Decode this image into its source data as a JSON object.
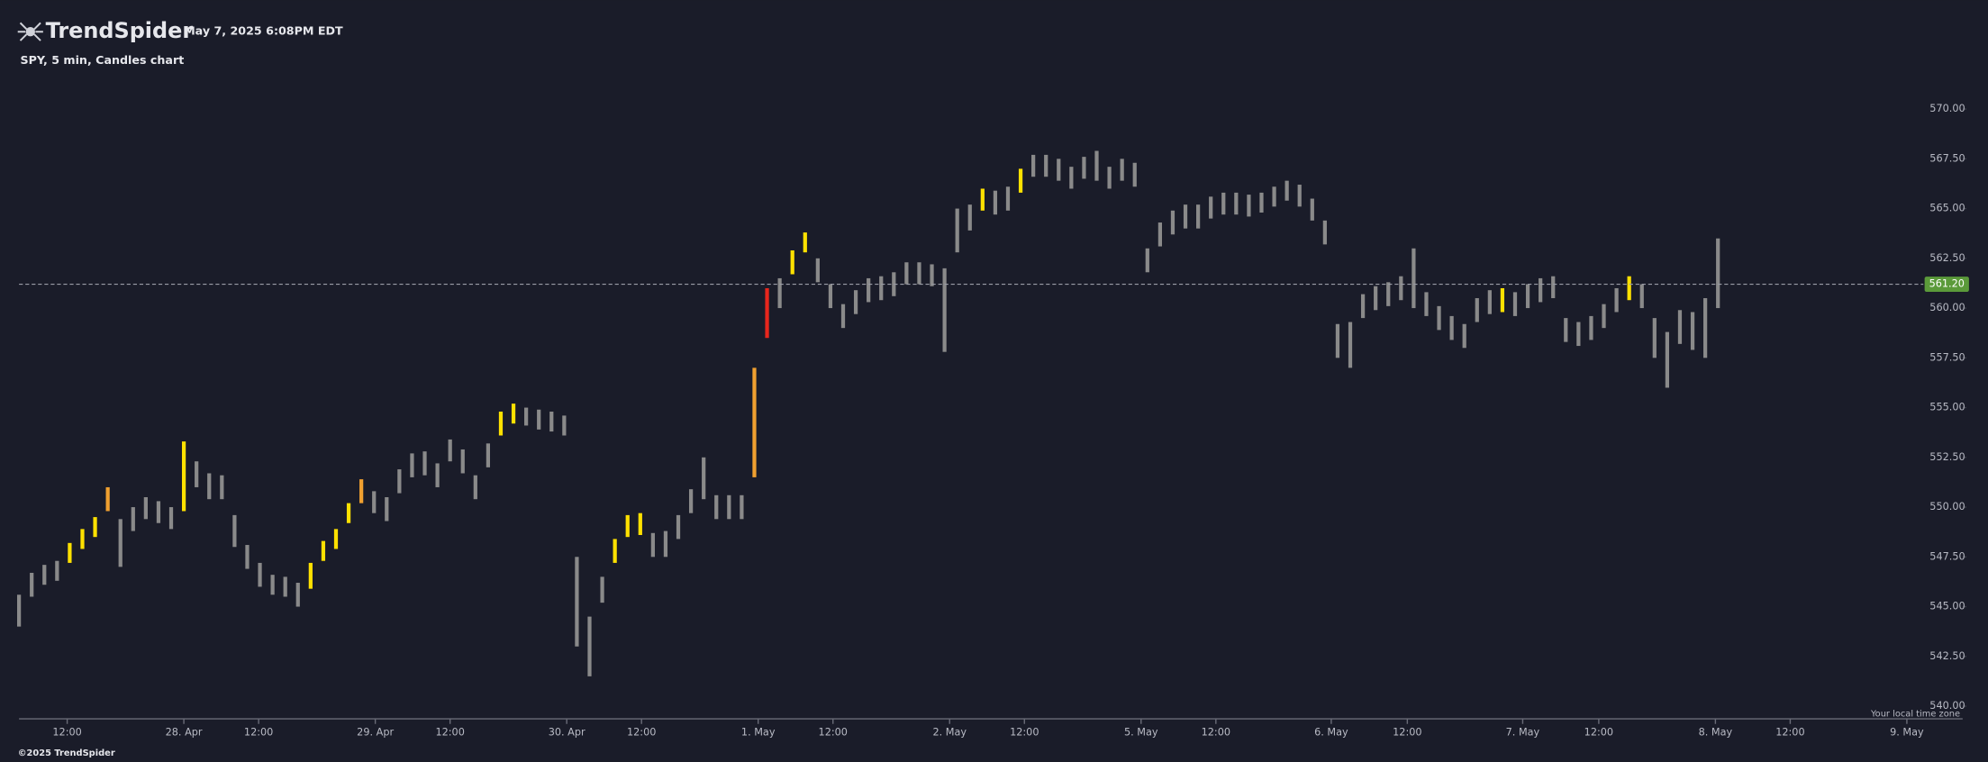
{
  "brand": "TrendSpider",
  "timestamp": "May 7, 2025 6:08PM EDT",
  "footer": "©2025 TrendSpider",
  "timezone_note": "Your local time zone",
  "chart_data": {
    "type": "candlestick",
    "title": "SPY, 5 min, Candles chart",
    "last_price": {
      "value": 561.2,
      "label": "561.20"
    },
    "xlim": [
      0,
      150
    ],
    "ylim": [
      540,
      570
    ],
    "yticks": [
      {
        "value": 540,
        "label": "540.00"
      },
      {
        "value": 542.5,
        "label": "542.50"
      },
      {
        "value": 545,
        "label": "545.00"
      },
      {
        "value": 547.5,
        "label": "547.50"
      },
      {
        "value": 550,
        "label": "550.00"
      },
      {
        "value": 552.5,
        "label": "552.50"
      },
      {
        "value": 555,
        "label": "555.00"
      },
      {
        "value": 557.5,
        "label": "557.50"
      },
      {
        "value": 560,
        "label": "560.00"
      },
      {
        "value": 562.5,
        "label": "562.50"
      },
      {
        "value": 565,
        "label": "565.00"
      },
      {
        "value": 567.5,
        "label": "567.50"
      },
      {
        "value": 570,
        "label": "570.00"
      }
    ],
    "xticks": [
      {
        "value": 3.8,
        "label": "12:00"
      },
      {
        "value": 13,
        "label": "28. Apr"
      },
      {
        "value": 18.9,
        "label": "12:00"
      },
      {
        "value": 28.1,
        "label": "29. Apr"
      },
      {
        "value": 34,
        "label": "12:00"
      },
      {
        "value": 43.2,
        "label": "30. Apr"
      },
      {
        "value": 49.1,
        "label": "12:00"
      },
      {
        "value": 58.3,
        "label": "1. May"
      },
      {
        "value": 64.2,
        "label": "12:00"
      },
      {
        "value": 73.4,
        "label": "2. May"
      },
      {
        "value": 79.3,
        "label": "12:00"
      },
      {
        "value": 88.5,
        "label": "5. May"
      },
      {
        "value": 94.4,
        "label": "12:00"
      },
      {
        "value": 103.5,
        "label": "6. May"
      },
      {
        "value": 109.5,
        "label": "12:00"
      },
      {
        "value": 118.6,
        "label": "7. May"
      },
      {
        "value": 124.6,
        "label": "12:00"
      },
      {
        "value": 133.8,
        "label": "8. May"
      },
      {
        "value": 139.7,
        "label": "12:00"
      },
      {
        "value": 148.9,
        "label": "9. May"
      }
    ],
    "low": [
      544.0,
      545.5,
      546.1,
      546.3,
      547.2,
      547.9,
      548.5,
      549.8,
      547.0,
      548.8,
      549.4,
      549.2,
      548.9,
      549.8,
      551.0,
      550.4,
      550.4,
      548.0,
      546.9,
      546.0,
      545.6,
      545.5,
      545.0,
      545.9,
      547.3,
      547.9,
      549.2,
      550.2,
      549.7,
      549.3,
      550.7,
      551.5,
      551.6,
      551.0,
      552.3,
      551.7,
      550.4,
      552.0,
      553.6,
      554.2,
      554.1,
      553.9,
      553.8,
      553.6,
      543.0,
      541.5,
      545.2,
      547.2,
      548.5,
      548.6,
      547.5,
      547.5,
      548.4,
      549.7,
      550.4,
      549.4,
      549.4,
      549.4,
      551.5,
      558.5,
      560.0,
      561.7,
      562.8,
      561.3,
      560.0,
      559.0,
      559.7,
      560.3,
      560.4,
      560.6,
      561.2,
      561.2,
      561.1,
      557.8,
      562.8,
      563.9,
      564.9,
      564.7,
      564.9,
      565.8,
      566.6,
      566.6,
      566.4,
      566.0,
      566.5,
      566.4,
      566.0,
      566.4,
      566.1,
      561.8,
      563.1,
      563.7,
      564.0,
      564.0,
      564.5,
      564.7,
      564.7,
      564.6,
      564.8,
      565.1,
      565.4,
      565.1,
      564.4,
      563.2,
      557.5,
      557.0,
      559.5,
      559.9,
      560.1,
      560.4,
      560.0,
      559.6,
      558.9,
      558.4,
      558.0,
      559.3,
      559.7,
      559.8,
      559.6,
      560.0,
      560.3,
      560.5,
      558.3,
      558.1,
      558.4,
      559.0,
      559.8,
      560.4,
      560.0,
      557.5,
      556.0,
      558.2,
      557.9,
      557.5,
      560.0
    ],
    "high": [
      545.6,
      546.7,
      547.1,
      547.3,
      548.2,
      548.9,
      549.5,
      551.0,
      549.4,
      550.0,
      550.5,
      550.3,
      550.0,
      553.3,
      552.3,
      551.7,
      551.6,
      549.6,
      548.1,
      547.2,
      546.6,
      546.5,
      546.2,
      547.2,
      548.3,
      548.9,
      550.2,
      551.4,
      550.8,
      550.5,
      551.9,
      552.7,
      552.8,
      552.2,
      553.4,
      552.9,
      551.6,
      553.2,
      554.8,
      555.2,
      555.0,
      554.9,
      554.8,
      554.6,
      547.5,
      544.5,
      546.5,
      548.4,
      549.6,
      549.7,
      548.7,
      548.8,
      549.6,
      550.9,
      552.5,
      550.6,
      550.6,
      550.6,
      557.0,
      561.0,
      561.5,
      562.9,
      563.8,
      562.5,
      561.2,
      560.2,
      560.9,
      561.5,
      561.6,
      561.8,
      562.3,
      562.3,
      562.2,
      562.0,
      565.0,
      565.2,
      566.0,
      565.9,
      566.1,
      567.0,
      567.7,
      567.7,
      567.5,
      567.1,
      567.6,
      567.9,
      567.1,
      567.5,
      567.3,
      563.0,
      564.3,
      564.9,
      565.2,
      565.2,
      565.6,
      565.8,
      565.8,
      565.7,
      565.8,
      566.1,
      566.4,
      566.2,
      565.5,
      564.4,
      559.2,
      559.3,
      560.7,
      561.1,
      561.3,
      561.6,
      563.0,
      560.8,
      560.1,
      559.6,
      559.2,
      560.5,
      560.9,
      561.0,
      560.8,
      561.2,
      561.5,
      561.6,
      559.5,
      559.3,
      559.6,
      560.2,
      561.0,
      561.6,
      561.2,
      559.5,
      558.8,
      559.9,
      559.8,
      560.5,
      563.5
    ],
    "colors": [
      "#8a8a8a",
      "#8a8a8a",
      "#8a8a8a",
      "#8a8a8a",
      "#ffe100",
      "#ffe100",
      "#ffe100",
      "#f0a030",
      "#8a8a8a",
      "#8a8a8a",
      "#8a8a8a",
      "#8a8a8a",
      "#8a8a8a",
      "#ffe100",
      "#8a8a8a",
      "#8a8a8a",
      "#8a8a8a",
      "#8a8a8a",
      "#8a8a8a",
      "#8a8a8a",
      "#8a8a8a",
      "#8a8a8a",
      "#8a8a8a",
      "#ffe100",
      "#ffe100",
      "#ffe100",
      "#ffe100",
      "#f0a030",
      "#8a8a8a",
      "#8a8a8a",
      "#8a8a8a",
      "#8a8a8a",
      "#8a8a8a",
      "#8a8a8a",
      "#8a8a8a",
      "#8a8a8a",
      "#8a8a8a",
      "#8a8a8a",
      "#ffe100",
      "#ffe100",
      "#8a8a8a",
      "#8a8a8a",
      "#8a8a8a",
      "#8a8a8a",
      "#8a8a8a",
      "#8a8a8a",
      "#8a8a8a",
      "#ffe100",
      "#ffe100",
      "#ffe100",
      "#8a8a8a",
      "#8a8a8a",
      "#8a8a8a",
      "#8a8a8a",
      "#8a8a8a",
      "#8a8a8a",
      "#8a8a8a",
      "#8a8a8a",
      "#f0a030",
      "#e8261c",
      "#8a8a8a",
      "#ffe100",
      "#ffe100",
      "#8a8a8a",
      "#8a8a8a",
      "#8a8a8a",
      "#8a8a8a",
      "#8a8a8a",
      "#8a8a8a",
      "#8a8a8a",
      "#8a8a8a",
      "#8a8a8a",
      "#8a8a8a",
      "#8a8a8a",
      "#8a8a8a",
      "#8a8a8a",
      "#ffe100",
      "#8a8a8a",
      "#8a8a8a",
      "#ffe100",
      "#8a8a8a",
      "#8a8a8a",
      "#8a8a8a",
      "#8a8a8a",
      "#8a8a8a",
      "#8a8a8a",
      "#8a8a8a",
      "#8a8a8a",
      "#8a8a8a",
      "#8a8a8a",
      "#8a8a8a",
      "#8a8a8a",
      "#8a8a8a",
      "#8a8a8a",
      "#8a8a8a",
      "#8a8a8a",
      "#8a8a8a",
      "#8a8a8a",
      "#8a8a8a",
      "#8a8a8a",
      "#8a8a8a",
      "#8a8a8a",
      "#8a8a8a",
      "#8a8a8a",
      "#8a8a8a",
      "#8a8a8a",
      "#8a8a8a",
      "#8a8a8a",
      "#8a8a8a",
      "#8a8a8a",
      "#8a8a8a",
      "#8a8a8a",
      "#8a8a8a",
      "#8a8a8a",
      "#8a8a8a",
      "#8a8a8a",
      "#8a8a8a",
      "#ffe100",
      "#8a8a8a",
      "#8a8a8a",
      "#8a8a8a",
      "#8a8a8a",
      "#8a8a8a",
      "#8a8a8a",
      "#8a8a8a",
      "#8a8a8a",
      "#8a8a8a",
      "#ffe100",
      "#8a8a8a",
      "#8a8a8a",
      "#8a8a8a",
      "#8a8a8a",
      "#8a8a8a",
      "#8a8a8a",
      "#8a8a8a"
    ]
  }
}
